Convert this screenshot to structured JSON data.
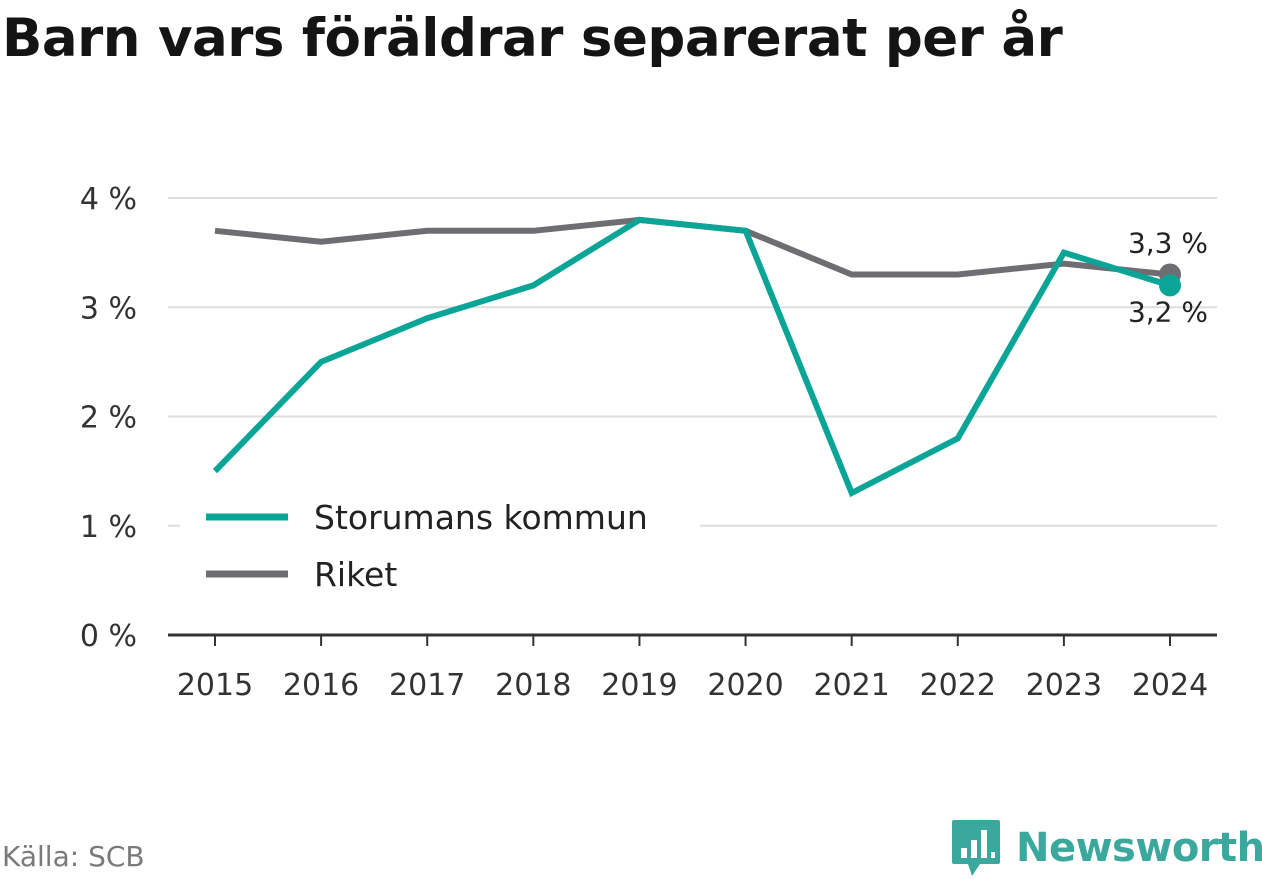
{
  "title": "Barn vars föräldrar separerat per år",
  "source": "Källa: SCB",
  "brand": "Newsworthy",
  "colors": {
    "series1": "#0aa597",
    "series2": "#6e6d72",
    "grid": "#dddddd",
    "axis": "#333333",
    "brand": "#3aa89c"
  },
  "chart_data": {
    "type": "line",
    "x": [
      2015,
      2016,
      2017,
      2018,
      2019,
      2020,
      2021,
      2022,
      2023,
      2024
    ],
    "y_ticks": [
      0,
      1,
      2,
      3,
      4
    ],
    "y_tick_labels": [
      "0 %",
      "1 %",
      "2 %",
      "3 %",
      "4 %"
    ],
    "ylim": [
      0,
      4
    ],
    "grid": true,
    "legend_placement": "bottom-left",
    "series": [
      {
        "name": "Storumans kommun",
        "values": [
          1.5,
          2.5,
          2.9,
          3.2,
          3.8,
          3.7,
          1.3,
          1.8,
          3.5,
          3.2
        ],
        "end_label": "3,2 %",
        "color": "#0aa597"
      },
      {
        "name": "Riket",
        "values": [
          3.7,
          3.6,
          3.7,
          3.7,
          3.8,
          3.7,
          3.3,
          3.3,
          3.4,
          3.3
        ],
        "end_label": "3,3 %",
        "color": "#6e6d72"
      }
    ]
  }
}
